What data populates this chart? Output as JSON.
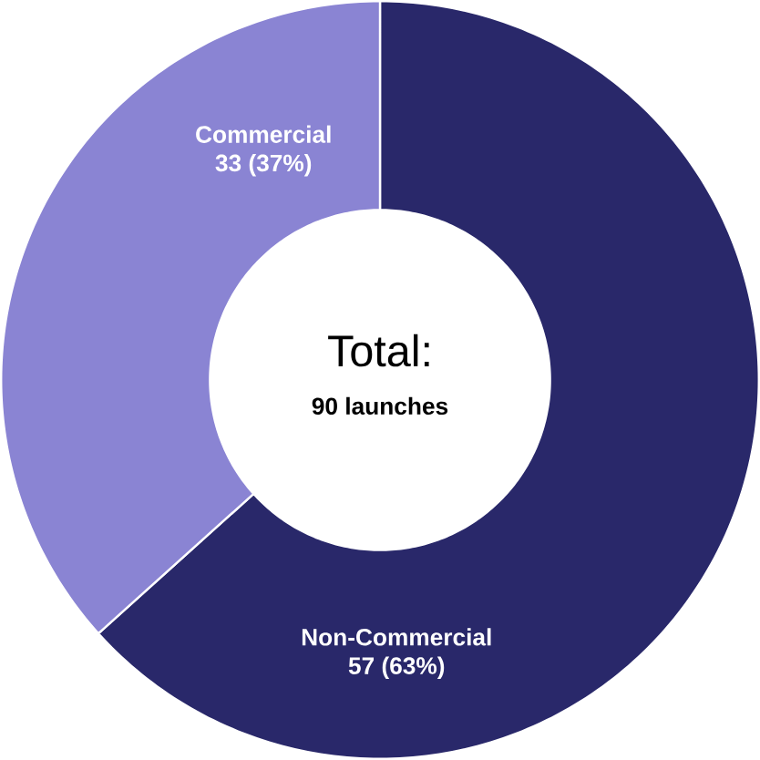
{
  "chart_data": {
    "type": "donut",
    "categories": [
      "Non-Commercial",
      "Commercial"
    ],
    "values": [
      57,
      33
    ],
    "colors": [
      "#29286a",
      "#8a84d3"
    ],
    "value_labels": [
      "57 (63%)",
      "33 (37%)"
    ],
    "annotations": [
      "Total:",
      "90 launches"
    ]
  }
}
